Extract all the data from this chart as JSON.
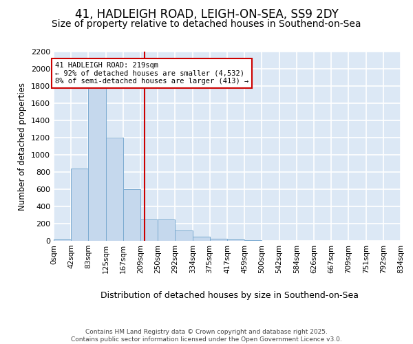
{
  "title1": "41, HADLEIGH ROAD, LEIGH-ON-SEA, SS9 2DY",
  "title2": "Size of property relative to detached houses in Southend-on-Sea",
  "xlabel": "Distribution of detached houses by size in Southend-on-Sea",
  "ylabel": "Number of detached properties",
  "property_size": 219,
  "bin_edges": [
    0,
    42,
    83,
    125,
    167,
    209,
    250,
    292,
    334,
    375,
    417,
    459,
    500,
    542,
    584,
    626,
    667,
    709,
    751,
    792,
    834
  ],
  "bin_labels": [
    "0sqm",
    "42sqm",
    "83sqm",
    "125sqm",
    "167sqm",
    "209sqm",
    "250sqm",
    "292sqm",
    "334sqm",
    "375sqm",
    "417sqm",
    "459sqm",
    "500sqm",
    "542sqm",
    "584sqm",
    "626sqm",
    "667sqm",
    "709sqm",
    "751sqm",
    "792sqm",
    "834sqm"
  ],
  "bar_heights": [
    20,
    840,
    1800,
    1200,
    600,
    250,
    250,
    120,
    50,
    25,
    20,
    5,
    0,
    0,
    0,
    0,
    0,
    0,
    0,
    0
  ],
  "bar_color": "#c5d8ed",
  "bar_edge_color": "#7aaad0",
  "bg_color": "#dce8f5",
  "grid_color": "#ffffff",
  "red_line_color": "#cc0000",
  "annotation_line1": "41 HADLEIGH ROAD: 219sqm",
  "annotation_line2": "← 92% of detached houses are smaller (4,532)",
  "annotation_line3": "8% of semi-detached houses are larger (413) →",
  "ylim": [
    0,
    2200
  ],
  "yticks": [
    0,
    200,
    400,
    600,
    800,
    1000,
    1200,
    1400,
    1600,
    1800,
    2000,
    2200
  ],
  "footer": "Contains HM Land Registry data © Crown copyright and database right 2025.\nContains public sector information licensed under the Open Government Licence v3.0.",
  "title_fontsize": 12,
  "subtitle_fontsize": 10,
  "fig_bg": "#ffffff"
}
